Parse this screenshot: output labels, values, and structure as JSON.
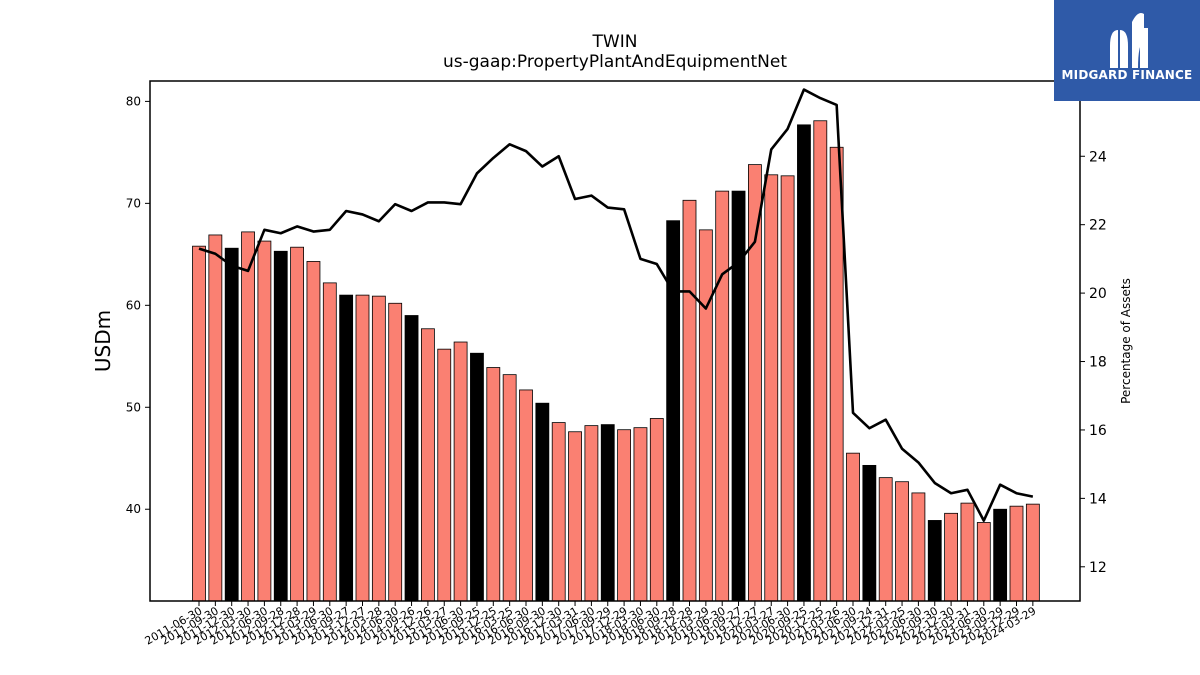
{
  "header": {
    "title": "TWIN",
    "subtitle": "us-gaap:PropertyPlantAndEquipmentNet"
  },
  "logo": {
    "text": "MIDGARD FINANCE"
  },
  "colors": {
    "bar_normal": "#fa8072",
    "bar_highlight": "#000000",
    "line": "#000000",
    "logo_bg": "#2f5aa8"
  },
  "chart_data": {
    "type": "bar",
    "ylabel": "USDm",
    "y2label": "Percentage of Assets",
    "ylim": [
      31,
      82
    ],
    "y2lim": [
      11,
      26.2
    ],
    "yticks": [
      40,
      50,
      60,
      70,
      80
    ],
    "y2ticks": [
      12,
      14,
      16,
      18,
      20,
      22,
      24
    ],
    "grid": false,
    "categories": [
      "2011-06-30",
      "2011-09-30",
      "2011-12-30",
      "2012-03-30",
      "2012-06-30",
      "2012-09-28",
      "2012-12-28",
      "2013-03-29",
      "2013-06-30",
      "2013-09-27",
      "2013-12-27",
      "2014-03-28",
      "2014-06-30",
      "2014-09-26",
      "2014-12-26",
      "2015-03-27",
      "2015-06-30",
      "2015-09-25",
      "2015-12-25",
      "2016-03-25",
      "2016-06-30",
      "2016-09-30",
      "2016-12-30",
      "2017-03-31",
      "2017-06-30",
      "2017-09-29",
      "2017-12-29",
      "2018-03-30",
      "2018-06-30",
      "2018-09-28",
      "2018-12-28",
      "2019-03-29",
      "2019-06-30",
      "2019-09-27",
      "2019-12-27",
      "2020-03-27",
      "2020-06-30",
      "2020-09-25",
      "2020-12-25",
      "2021-03-26",
      "2021-06-30",
      "2021-09-24",
      "2021-12-31",
      "2022-03-25",
      "2022-06-30",
      "2022-09-30",
      "2022-12-30",
      "2023-03-31",
      "2023-06-30",
      "2023-09-29",
      "2023-12-29",
      "2024-03-29"
    ],
    "series": [
      {
        "type": "bar",
        "values": [
          65.8,
          66.9,
          65.6,
          67.2,
          66.3,
          65.3,
          65.7,
          64.3,
          62.2,
          61.0,
          61.0,
          60.9,
          60.2,
          59.0,
          57.7,
          55.7,
          56.4,
          55.3,
          53.9,
          53.2,
          51.7,
          50.4,
          48.5,
          47.6,
          48.2,
          48.3,
          47.8,
          48.0,
          48.9,
          68.3,
          70.3,
          67.4,
          71.2,
          71.2,
          73.8,
          72.8,
          72.7,
          77.7,
          78.1,
          75.5,
          45.5,
          44.3,
          43.1,
          42.7,
          41.6,
          38.9,
          39.6,
          40.6,
          38.7,
          40.0,
          40.3,
          40.5
        ],
        "highlight": [
          false,
          false,
          true,
          false,
          false,
          true,
          false,
          false,
          false,
          true,
          false,
          false,
          false,
          true,
          false,
          false,
          false,
          true,
          false,
          false,
          false,
          true,
          false,
          false,
          false,
          true,
          false,
          false,
          false,
          true,
          false,
          false,
          false,
          true,
          false,
          false,
          false,
          true,
          false,
          false,
          false,
          true,
          false,
          false,
          false,
          true,
          false,
          false,
          false,
          true,
          false,
          false
        ]
      },
      {
        "type": "line",
        "axis": "right",
        "values": [
          21.3,
          21.15,
          20.8,
          20.65,
          21.85,
          21.75,
          21.95,
          21.8,
          21.85,
          22.4,
          22.3,
          22.1,
          22.6,
          22.4,
          22.65,
          22.65,
          22.6,
          23.5,
          23.95,
          24.35,
          24.15,
          23.7,
          24.0,
          22.75,
          22.85,
          22.5,
          22.45,
          21.0,
          20.85,
          20.05,
          20.05,
          19.55,
          20.55,
          20.9,
          21.5,
          24.2,
          24.8,
          25.95,
          25.7,
          25.5,
          16.5,
          16.05,
          16.3,
          15.45,
          15.05,
          14.45,
          14.15,
          14.25,
          13.35,
          14.4,
          14.15,
          14.05
        ]
      }
    ]
  }
}
